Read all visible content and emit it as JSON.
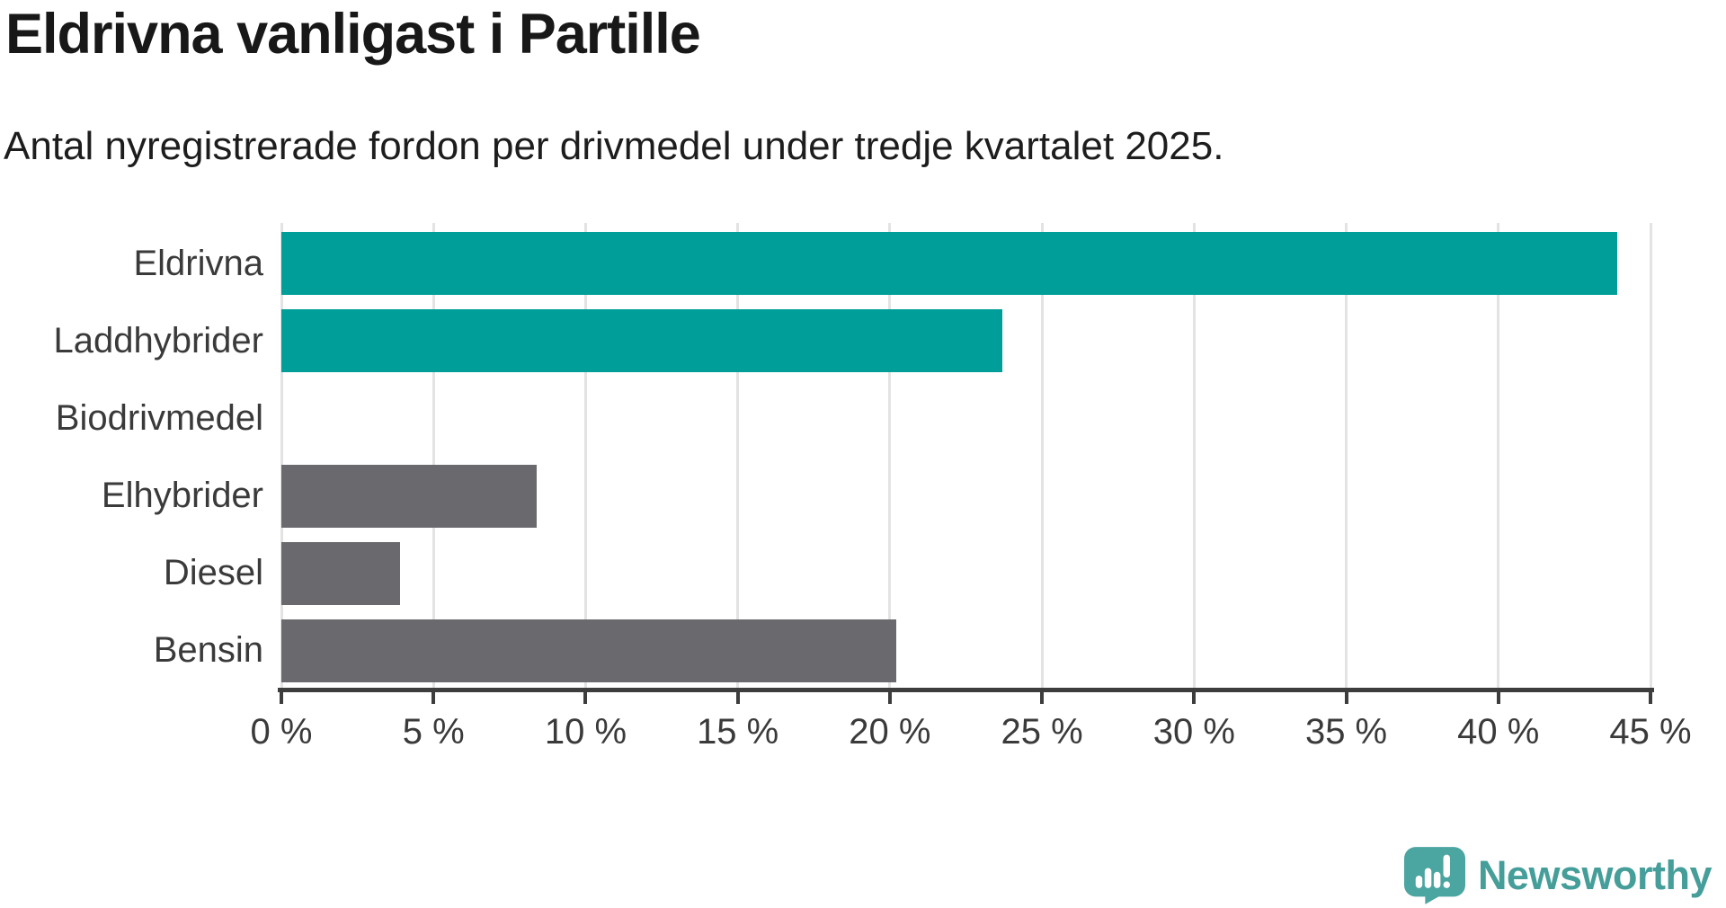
{
  "header": {
    "title": "Eldrivna vanligast i Partille",
    "subtitle": "Antal nyregistrerade fordon per drivmedel under tredje kvartalet 2025."
  },
  "chart_data": {
    "type": "bar",
    "orientation": "horizontal",
    "title": "Eldrivna vanligast i Partille",
    "subtitle": "Antal nyregistrerade fordon per drivmedel under tredje kvartalet 2025.",
    "categories": [
      "Eldrivna",
      "Laddhybrider",
      "Biodrivmedel",
      "Elhybrider",
      "Diesel",
      "Bensin"
    ],
    "values": [
      43.9,
      23.7,
      0,
      8.4,
      3.9,
      20.2
    ],
    "unit": "%",
    "xlim": [
      0,
      45
    ],
    "x_tick_values": [
      0,
      5,
      10,
      15,
      20,
      25,
      30,
      35,
      40,
      45
    ],
    "x_tick_labels": [
      "0 %",
      "5 %",
      "10 %",
      "15 %",
      "20 %",
      "25 %",
      "30 %",
      "35 %",
      "40 %",
      "45 %"
    ],
    "bar_colors": [
      "#009E98",
      "#009E98",
      "#6A6A6E",
      "#6A6A6E",
      "#6A6A6E",
      "#6A6A6E"
    ],
    "grid": "vertical-light",
    "legend": "none"
  },
  "colors": {
    "highlight_teal": "#009E98",
    "neutral_gray": "#6A6A6E",
    "gridline": "#e3e3e3",
    "axis": "#3d3d3d",
    "brand_teal": "#459E99"
  },
  "footer": {
    "brand_name": "Newsworthy"
  }
}
